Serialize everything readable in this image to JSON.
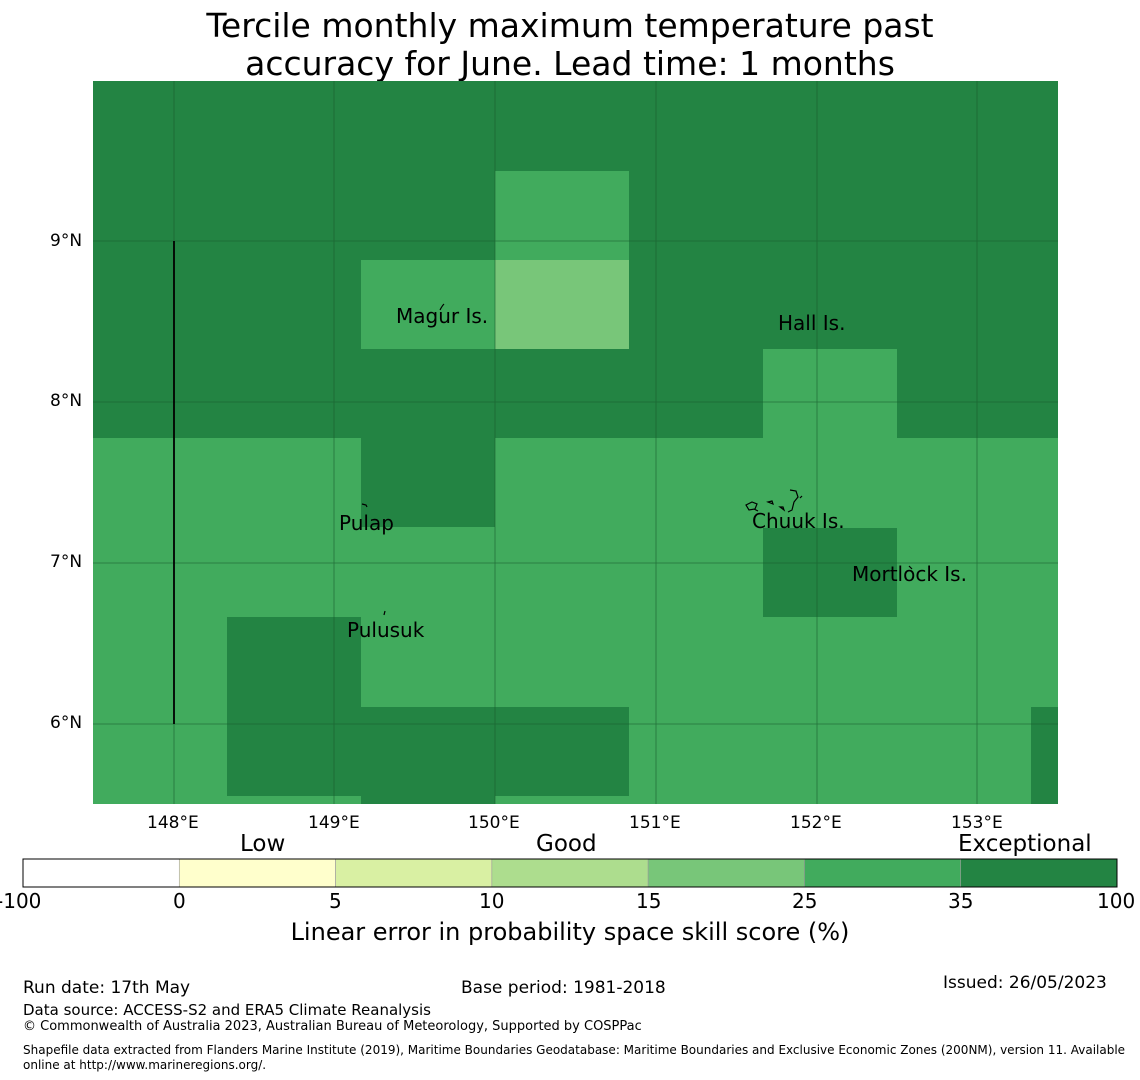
{
  "title": {
    "line1": "Tercile monthly maximum temperature past",
    "line2": "accuracy for June. Lead time: 1 months"
  },
  "map": {
    "lon_range": [
      147.5,
      153.5
    ],
    "lat_range": [
      5.5,
      10.0
    ],
    "lon_ticks": [
      "148°E",
      "149°E",
      "150°E",
      "151°E",
      "152°E",
      "153°E"
    ],
    "lat_ticks": [
      "9°N",
      "8°N",
      "7°N",
      "6°N"
    ],
    "gridlines": true,
    "places": [
      "Magur Is.",
      "Hall Is.",
      "Pulap",
      "Chuuk Is.",
      "Mortlock Is.",
      "Pulusuk"
    ]
  },
  "colorbar": {
    "categories": [
      "Low",
      "Good",
      "Exceptional"
    ],
    "tick_labels": [
      "-100",
      "0",
      "5",
      "10",
      "15",
      "25",
      "35",
      "100"
    ],
    "colors": [
      "#ffffff",
      "#ffffcc",
      "#d9f0a3",
      "#addd8e",
      "#78c679",
      "#41ab5d",
      "#238443"
    ],
    "title": "Linear error in probability space skill score (%)"
  },
  "footer": {
    "run_date": "Run date: 17th May",
    "base_period": "Base period: 1981-2018",
    "issued": "Issued: 26/05/2023",
    "data_source": "Data source: ACCESS-S2 and ERA5 Climate Reanalysis",
    "copyright": "© Commonwealth of Australia 2023, Australian Bureau of Meteorology, Supported by COSPPac",
    "shapefile_line1": "Shapefile data extracted from Flanders Marine Institute (2019), Maritime Boundaries Geodatabase: Maritime Boundaries and Exclusive Economic Zones (200NM), version 11. Available",
    "shapefile_line2": "online at http://www.marineregions.org/."
  }
}
